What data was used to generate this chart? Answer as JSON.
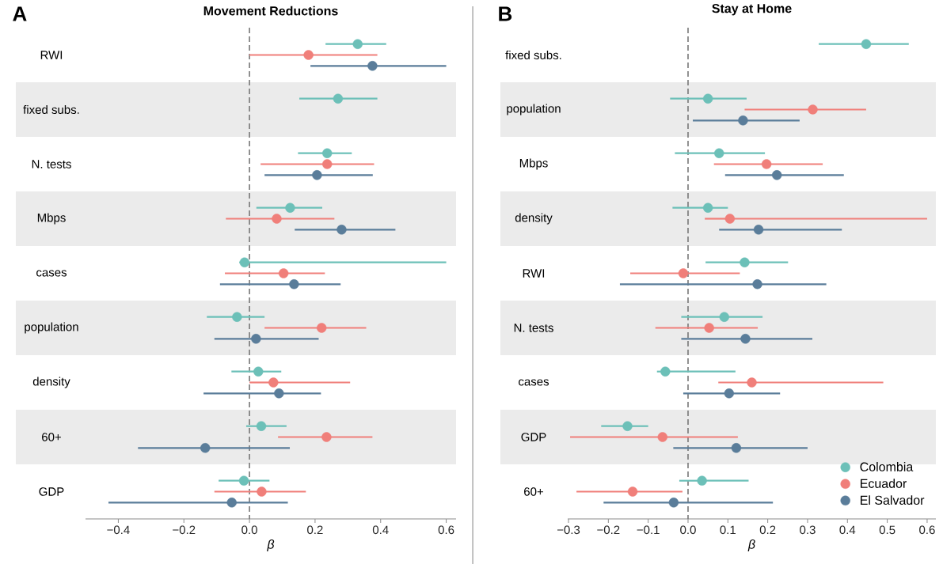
{
  "chart_data": [
    {
      "type": "scatter",
      "orientation": "horizontal",
      "title": "Movement Reductions",
      "xlabel": "β",
      "annotations": [
        "A"
      ],
      "marker": "circle",
      "legend": false,
      "categories": [
        "RWI",
        "fixed subs.",
        "N. tests",
        "Mbps",
        "cases",
        "population",
        "density",
        "60+",
        "GDP"
      ],
      "series": [
        {
          "color": "#6cc0b8",
          "values": [
            0.33,
            0.27,
            0.237,
            0.124,
            -0.015,
            -0.038,
            0.027,
            0.036,
            -0.017
          ],
          "errors": [
            [
              0.232,
              0.417
            ],
            [
              0.152,
              0.39
            ],
            [
              0.148,
              0.312
            ],
            [
              0.021,
              0.222
            ],
            [
              -0.031,
              0.6
            ],
            [
              -0.13,
              0.046
            ],
            [
              -0.055,
              0.097
            ],
            [
              -0.01,
              0.113
            ],
            [
              -0.094,
              0.061
            ]
          ]
        },
        {
          "color": "#f07f7a",
          "values": [
            0.18,
            null,
            0.237,
            0.083,
            0.104,
            0.22,
            0.073,
            0.235,
            0.037
          ],
          "errors": [
            [
              0.0,
              0.39
            ],
            null,
            [
              0.034,
              0.38
            ],
            [
              -0.072,
              0.259
            ],
            [
              -0.075,
              0.23
            ],
            [
              0.046,
              0.356
            ],
            [
              0.0,
              0.307
            ],
            [
              0.087,
              0.375
            ],
            [
              -0.107,
              0.172
            ]
          ]
        },
        {
          "color": "#5a7d9a",
          "values": [
            0.375,
            null,
            0.206,
            0.281,
            0.136,
            0.02,
            0.09,
            -0.135,
            -0.054
          ],
          "errors": [
            [
              0.186,
              0.6
            ],
            null,
            [
              0.046,
              0.376
            ],
            [
              0.138,
              0.445
            ],
            [
              -0.09,
              0.278
            ],
            [
              -0.107,
              0.211
            ],
            [
              -0.14,
              0.218
            ],
            [
              -0.34,
              0.123
            ],
            [
              -0.43,
              0.117
            ]
          ]
        }
      ],
      "xlim": [
        -0.5,
        0.63
      ],
      "xticks": [
        {
          "value": -0.4,
          "label": "−0.4"
        },
        {
          "value": -0.2,
          "label": "−0.2"
        },
        {
          "value": 0,
          "label": "0.0"
        },
        {
          "value": 0.2,
          "label": "0.2"
        },
        {
          "value": 0.4,
          "label": "0.4"
        },
        {
          "value": 0.6,
          "label": "0.6"
        }
      ],
      "ref_lines": [
        {
          "axis": "x",
          "value": 0,
          "color": "#777777",
          "line_style": "dashed"
        }
      ]
    },
    {
      "type": "scatter",
      "orientation": "horizontal",
      "title": "Stay at Home",
      "xlabel": "β",
      "annotations": [
        "B"
      ],
      "marker": "circle",
      "legend": "bottom right",
      "categories": [
        "fixed subs.",
        "population",
        "Mbps",
        "density",
        "RWI",
        "N. tests",
        "cases",
        "GDP",
        "60+"
      ],
      "series": [
        {
          "name": "Colombia",
          "color": "#6cc0b8",
          "values": [
            0.447,
            0.05,
            0.078,
            0.05,
            0.142,
            0.091,
            -0.057,
            -0.152,
            0.035
          ],
          "errors": [
            [
              0.328,
              0.554
            ],
            [
              -0.045,
              0.147
            ],
            [
              -0.033,
              0.193
            ],
            [
              -0.039,
              0.1
            ],
            [
              0.044,
              0.251
            ],
            [
              -0.017,
              0.187
            ],
            [
              -0.078,
              0.119
            ],
            [
              -0.218,
              -0.1
            ],
            [
              -0.022,
              0.152
            ]
          ]
        },
        {
          "name": "Ecuador",
          "color": "#f07f7a",
          "values": [
            null,
            0.313,
            0.197,
            0.105,
            -0.012,
            0.053,
            0.16,
            -0.064,
            -0.139
          ],
          "errors": [
            null,
            [
              0.142,
              0.447
            ],
            [
              0.065,
              0.338
            ],
            [
              0.042,
              0.6
            ],
            [
              -0.145,
              0.13
            ],
            [
              -0.082,
              0.175
            ],
            [
              0.076,
              0.49
            ],
            [
              -0.296,
              0.125
            ],
            [
              -0.28,
              -0.014
            ]
          ]
        },
        {
          "name": "El Salvador",
          "color": "#5a7d9a",
          "values": [
            null,
            0.138,
            0.223,
            0.177,
            0.174,
            0.144,
            0.103,
            0.121,
            -0.036
          ],
          "errors": [
            null,
            [
              0.012,
              0.28
            ],
            [
              0.093,
              0.391
            ],
            [
              0.078,
              0.386
            ],
            [
              -0.171,
              0.347
            ],
            [
              -0.017,
              0.312
            ],
            [
              -0.012,
              0.231
            ],
            [
              -0.037,
              0.3
            ],
            [
              -0.212,
              0.213
            ]
          ]
        }
      ],
      "xlim": [
        -0.302,
        0.622
      ],
      "xticks": [
        {
          "value": -0.3,
          "label": "−0.3"
        },
        {
          "value": -0.2,
          "label": "−0.2"
        },
        {
          "value": -0.1,
          "label": "−0.1"
        },
        {
          "value": 0,
          "label": "0.0"
        },
        {
          "value": 0.1,
          "label": "0.1"
        },
        {
          "value": 0.2,
          "label": "0.2"
        },
        {
          "value": 0.3,
          "label": "0.3"
        },
        {
          "value": 0.4,
          "label": "0.4"
        },
        {
          "value": 0.5,
          "label": "0.5"
        },
        {
          "value": 0.6,
          "label": "0.6"
        }
      ],
      "ref_lines": [
        {
          "axis": "x",
          "value": 0,
          "color": "#777777",
          "line_style": "dashed"
        }
      ]
    }
  ]
}
